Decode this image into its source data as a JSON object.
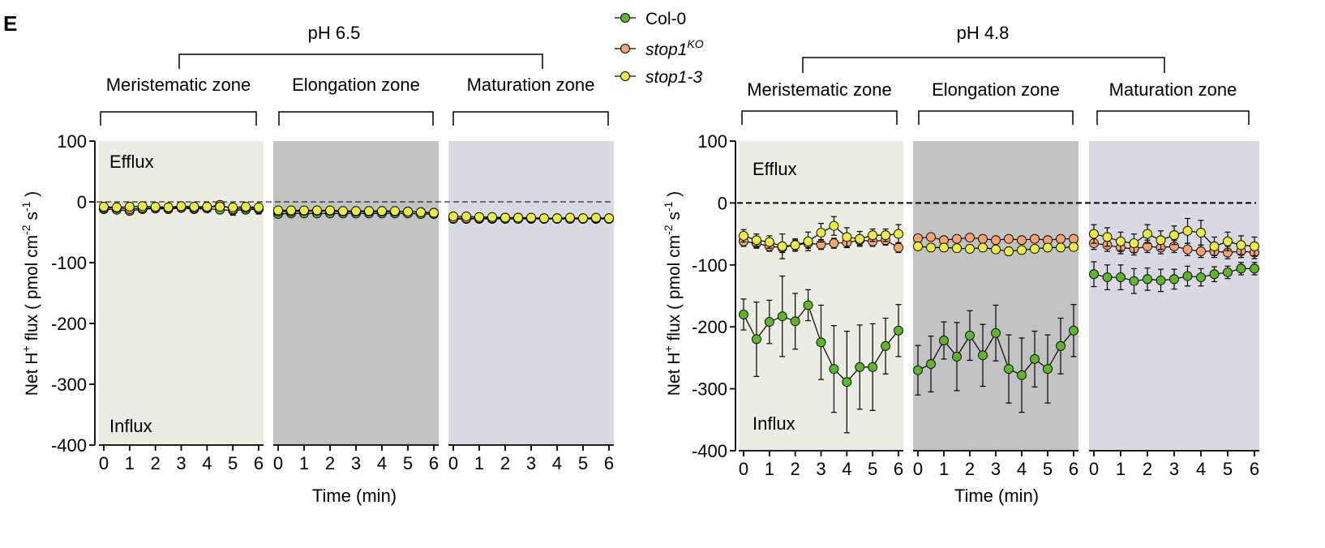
{
  "panel_label": "E",
  "legend": [
    {
      "name": "Col-0",
      "sup": "",
      "italic": false,
      "color": "#5cb82a"
    },
    {
      "name": "stop1",
      "sup": "KO",
      "italic": true,
      "color": "#f4a36c"
    },
    {
      "name": "stop1-3",
      "sup": "",
      "italic": true,
      "color": "#ecec3c"
    }
  ],
  "zones": [
    "Meristematic zone",
    "Elongation zone",
    "Maturation zone"
  ],
  "zone_colors": [
    "#ecece2",
    "#c2c2c2",
    "#d9d9e4"
  ],
  "annotations": {
    "top": "Efflux",
    "bottom": "Influx"
  },
  "chart_data": [
    {
      "type": "line",
      "title": "pH 6.5",
      "xlabel": "Time (min)",
      "ylabel": "Net H+ flux ( pmol cm-2 s-1 )",
      "ylim": [
        -400,
        100
      ],
      "yticks": [
        "100",
        "0",
        "-100",
        "-200",
        "-300",
        "-400"
      ],
      "xticks": [
        "0",
        "1",
        "2",
        "3",
        "4",
        "5",
        "6"
      ],
      "x": [
        0,
        0.5,
        1,
        1.5,
        2,
        2.5,
        3,
        3.5,
        4,
        4.5,
        5,
        5.5,
        6
      ],
      "reference_line": 0,
      "zones": [
        {
          "name": "Meristematic zone",
          "series": [
            {
              "name": "Col-0",
              "values": [
                -12,
                -13,
                -15,
                -12,
                -11,
                -12,
                -10,
                -12,
                -11,
                -13,
                -14,
                -13,
                -12
              ],
              "errors": [
                5,
                5,
                5,
                5,
                5,
                5,
                5,
                5,
                5,
                5,
                8,
                6,
                8
              ]
            },
            {
              "name": "stop1KO",
              "values": [
                -10,
                -10,
                -12,
                -10,
                -10,
                -10,
                -9,
                -10,
                -9,
                -5,
                -12,
                -10,
                -11
              ],
              "errors": [
                4,
                4,
                4,
                4,
                4,
                4,
                4,
                4,
                4,
                4,
                5,
                5,
                5
              ]
            },
            {
              "name": "stop1-3",
              "values": [
                -8,
                -9,
                -8,
                -7,
                -8,
                -9,
                -7,
                -8,
                -8,
                -8,
                -9,
                -8,
                -9
              ],
              "errors": [
                4,
                4,
                4,
                4,
                4,
                4,
                4,
                4,
                4,
                4,
                4,
                4,
                4
              ]
            }
          ]
        },
        {
          "name": "Elongation zone",
          "series": [
            {
              "name": "Col-0",
              "values": [
                -20,
                -19,
                -19,
                -19,
                -19,
                -19,
                -19,
                -19,
                -19,
                -19,
                -19,
                -20,
                -20
              ],
              "errors": [
                5,
                5,
                5,
                5,
                5,
                5,
                5,
                5,
                5,
                5,
                5,
                5,
                5
              ]
            },
            {
              "name": "stop1KO",
              "values": [
                -16,
                -16,
                -15,
                -15,
                -15,
                -16,
                -16,
                -16,
                -16,
                -16,
                -16,
                -17,
                -18
              ],
              "errors": [
                4,
                4,
                4,
                4,
                4,
                4,
                4,
                4,
                4,
                4,
                4,
                4,
                4
              ]
            },
            {
              "name": "stop1-3",
              "values": [
                -14,
                -14,
                -14,
                -14,
                -14,
                -15,
                -15,
                -15,
                -15,
                -15,
                -16,
                -17,
                -18
              ],
              "errors": [
                4,
                4,
                4,
                4,
                4,
                4,
                4,
                4,
                4,
                4,
                4,
                4,
                4
              ]
            }
          ]
        },
        {
          "name": "Maturation zone",
          "series": [
            {
              "name": "Col-0",
              "values": [
                -28,
                -28,
                -28,
                -28,
                -28,
                -28,
                -28,
                -28,
                -28,
                -28,
                -28,
                -28,
                -28
              ],
              "errors": [
                4,
                4,
                4,
                4,
                4,
                4,
                4,
                4,
                4,
                4,
                4,
                4,
                4
              ]
            },
            {
              "name": "stop1KO",
              "values": [
                -27,
                -27,
                -27,
                -27,
                -26,
                -26,
                -27,
                -27,
                -27,
                -28,
                -27,
                -27,
                -27
              ],
              "errors": [
                3,
                3,
                3,
                3,
                3,
                3,
                3,
                3,
                3,
                3,
                3,
                3,
                3
              ]
            },
            {
              "name": "stop1-3",
              "values": [
                -24,
                -24,
                -25,
                -25,
                -26,
                -26,
                -26,
                -27,
                -27,
                -26,
                -27,
                -26,
                -27
              ],
              "errors": [
                3,
                3,
                3,
                3,
                3,
                3,
                3,
                3,
                3,
                3,
                3,
                3,
                3
              ]
            }
          ]
        }
      ]
    },
    {
      "type": "line",
      "title": "pH 4.8",
      "xlabel": "Time (min)",
      "ylabel": "Net H+ flux ( pmol cm-2 s-1 )",
      "ylim": [
        -400,
        100
      ],
      "yticks": [
        "100",
        "0",
        "-100",
        "-200",
        "-300",
        "-400"
      ],
      "xticks": [
        "0",
        "1",
        "2",
        "3",
        "4",
        "5",
        "6"
      ],
      "x": [
        0,
        0.5,
        1,
        1.5,
        2,
        2.5,
        3,
        3.5,
        4,
        4.5,
        5,
        5.5,
        6
      ],
      "reference_line": 0,
      "zones": [
        {
          "name": "Meristematic zone",
          "series": [
            {
              "name": "Col-0",
              "values": [
                -180,
                -220,
                -192,
                -183,
                -191,
                -165,
                -225,
                -268,
                -289,
                -265,
                -265,
                -231,
                -206
              ],
              "errors": [
                25,
                60,
                35,
                65,
                45,
                25,
                60,
                70,
                82,
                68,
                70,
                45,
                42
              ]
            },
            {
              "name": "stop1KO",
              "values": [
                -62,
                -65,
                -70,
                -72,
                -68,
                -65,
                -67,
                -65,
                -64,
                -60,
                -62,
                -60,
                -72
              ],
              "errors": [
                8,
                8,
                8,
                8,
                8,
                8,
                8,
                8,
                8,
                8,
                8,
                8,
                8
              ]
            },
            {
              "name": "stop1-3",
              "values": [
                -53,
                -60,
                -63,
                -70,
                -68,
                -62,
                -48,
                -37,
                -55,
                -58,
                -52,
                -52,
                -50
              ],
              "errors": [
                10,
                10,
                10,
                20,
                10,
                15,
                15,
                15,
                15,
                12,
                10,
                10,
                15
              ]
            }
          ]
        },
        {
          "name": "Elongation zone",
          "series": [
            {
              "name": "Col-0",
              "values": [
                -270,
                -260,
                -222,
                -248,
                -214,
                -246,
                -210,
                -268,
                -278,
                -252,
                -268,
                -231,
                -206
              ],
              "errors": [
                40,
                45,
                30,
                55,
                40,
                50,
                45,
                55,
                60,
                45,
                55,
                45,
                42
              ]
            },
            {
              "name": "stop1KO",
              "values": [
                -57,
                -55,
                -60,
                -58,
                -56,
                -58,
                -60,
                -58,
                -60,
                -58,
                -60,
                -58,
                -58
              ],
              "errors": [
                5,
                5,
                5,
                5,
                5,
                5,
                5,
                5,
                5,
                5,
                5,
                5,
                5
              ]
            },
            {
              "name": "stop1-3",
              "values": [
                -70,
                -72,
                -72,
                -73,
                -74,
                -72,
                -75,
                -78,
                -76,
                -74,
                -72,
                -72,
                -71
              ],
              "errors": [
                6,
                6,
                6,
                6,
                6,
                6,
                6,
                6,
                6,
                6,
                6,
                6,
                6
              ]
            }
          ]
        },
        {
          "name": "Maturation zone",
          "series": [
            {
              "name": "Col-0",
              "values": [
                -115,
                -120,
                -120,
                -126,
                -123,
                -125,
                -123,
                -118,
                -120,
                -115,
                -112,
                -106,
                -106
              ],
              "errors": [
                20,
                20,
                20,
                20,
                18,
                18,
                16,
                16,
                14,
                12,
                10,
                10,
                10
              ]
            },
            {
              "name": "stop1KO",
              "values": [
                -65,
                -68,
                -72,
                -74,
                -70,
                -72,
                -70,
                -75,
                -78,
                -78,
                -80,
                -78,
                -80
              ],
              "errors": [
                10,
                10,
                10,
                10,
                10,
                10,
                10,
                10,
                10,
                10,
                10,
                10,
                10
              ]
            },
            {
              "name": "stop1-3",
              "values": [
                -50,
                -55,
                -62,
                -65,
                -50,
                -60,
                -52,
                -45,
                -48,
                -70,
                -62,
                -68,
                -70
              ],
              "errors": [
                15,
                15,
                15,
                15,
                15,
                15,
                15,
                20,
                20,
                15,
                15,
                15,
                15
              ]
            }
          ]
        }
      ]
    }
  ]
}
